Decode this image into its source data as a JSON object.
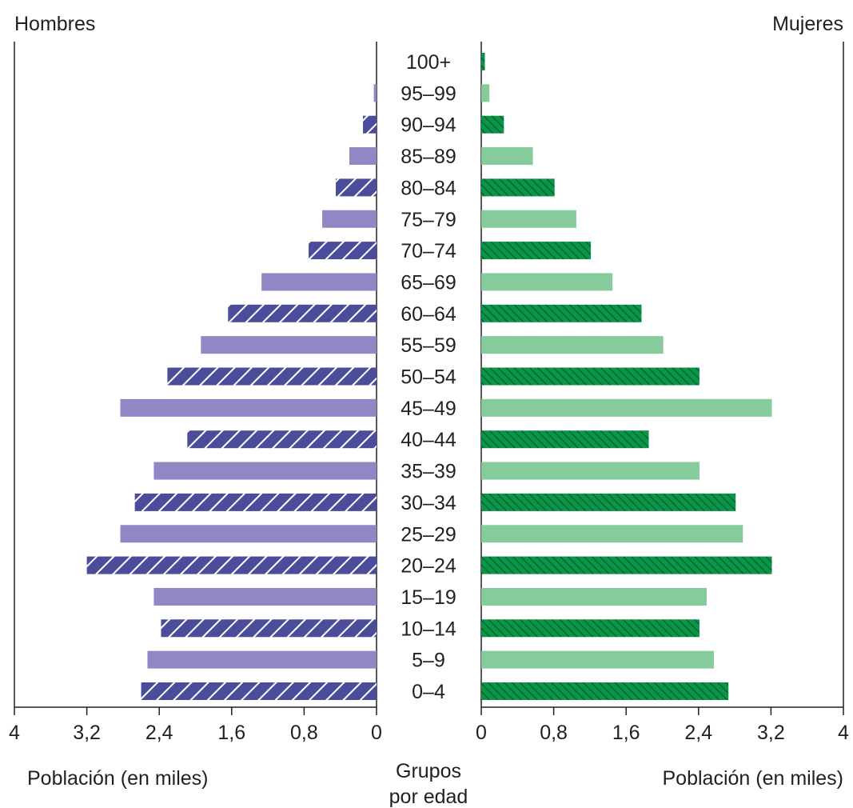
{
  "chart_data": {
    "type": "bar",
    "subtype": "population-pyramid",
    "left_title": "Hombres",
    "right_title": "Mujeres",
    "center_label_line1": "Grupos",
    "center_label_line2": "por edad",
    "left_xlabel": "Población (en miles)",
    "right_xlabel": "Población (en miles)",
    "xlim": [
      0,
      4
    ],
    "left_ticks": [
      "4",
      "3,2",
      "2,4",
      "1,6",
      "0,8",
      "0"
    ],
    "right_ticks": [
      "0",
      "0,8",
      "1,6",
      "2,4",
      "3,2",
      "4"
    ],
    "categories": [
      "0–4",
      "5–9",
      "10–14",
      "15–19",
      "20–24",
      "25–29",
      "30–34",
      "35–39",
      "40–44",
      "45–49",
      "50–54",
      "55–59",
      "60–64",
      "65–69",
      "70–74",
      "75–79",
      "80–84",
      "85–89",
      "90–94",
      "95–99",
      "100+"
    ],
    "series": [
      {
        "name": "Hombres",
        "values": [
          2.6,
          2.53,
          2.38,
          2.46,
          3.2,
          2.83,
          2.67,
          2.46,
          2.09,
          2.83,
          2.31,
          1.94,
          1.64,
          1.27,
          0.75,
          0.6,
          0.45,
          0.3,
          0.15,
          0.03,
          0
        ],
        "colors": {
          "solid": "#9088c4",
          "hatched": "#4b4c9a"
        }
      },
      {
        "name": "Mujeres",
        "values": [
          2.73,
          2.57,
          2.41,
          2.49,
          3.21,
          2.89,
          2.81,
          2.41,
          1.85,
          3.21,
          2.41,
          2.01,
          1.77,
          1.45,
          1.21,
          1.05,
          0.81,
          0.57,
          0.25,
          0.09,
          0.04
        ],
        "colors": {
          "solid": "#85cb9c",
          "hatched": "#0a9548"
        }
      }
    ],
    "hatched_categories": [
      "0–4",
      "10–14",
      "20–24",
      "30–34",
      "40–44",
      "50–54",
      "60–64",
      "70–74",
      "80–84",
      "90–94",
      "100+"
    ],
    "grid": false,
    "legend": "none"
  }
}
